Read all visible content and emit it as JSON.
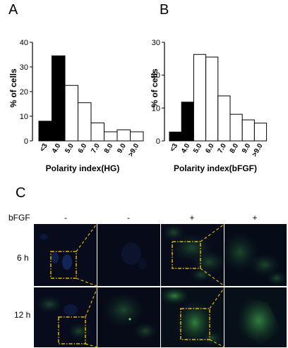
{
  "chart_data": [
    {
      "type": "bar",
      "panel_label": "A",
      "categories": [
        "<3",
        "4.0",
        "5.0",
        "6.0",
        "7.0",
        "8.0",
        "9.0",
        ">9.0"
      ],
      "values": [
        8,
        34.5,
        22.5,
        15.5,
        7.3,
        3.7,
        4.5,
        3.7
      ],
      "bar_colors": [
        "#000000",
        "#000000",
        "#ffffff",
        "#ffffff",
        "#ffffff",
        "#ffffff",
        "#ffffff",
        "#ffffff"
      ],
      "xlabel": "Polarity index(HG)",
      "ylabel": "% of cells",
      "ylim": [
        0,
        40
      ],
      "yticks": [
        "0",
        "10",
        "20",
        "30",
        "40"
      ],
      "grid": false
    },
    {
      "type": "bar",
      "panel_label": "B",
      "categories": [
        "<3",
        "4.0",
        "5.0",
        "6.0",
        "7.0",
        "8.0",
        "9.0",
        ">9.0"
      ],
      "values": [
        2.7,
        11.8,
        26.3,
        25.5,
        13.7,
        8.1,
        6.4,
        5.4
      ],
      "bar_colors": [
        "#000000",
        "#000000",
        "#ffffff",
        "#ffffff",
        "#ffffff",
        "#ffffff",
        "#ffffff",
        "#ffffff"
      ],
      "xlabel": "Polarity index(bFGF)",
      "ylabel": "% of cells",
      "ylim": [
        0,
        30
      ],
      "yticks": [
        "0",
        "10",
        "20",
        "30"
      ],
      "grid": false
    }
  ],
  "micrographs": {
    "panel_label": "C",
    "condition_label": "bFGF",
    "columns": [
      "-",
      "-",
      "+",
      "+"
    ],
    "rows": [
      "6 h",
      "12 h"
    ],
    "colors": {
      "background": "#060a1a",
      "stain": "#2f8a3a",
      "nucleus": "#1b2f6e",
      "box": "#e0b400"
    }
  }
}
